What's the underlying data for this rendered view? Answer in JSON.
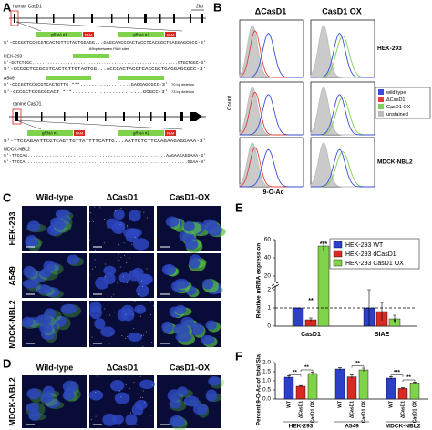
{
  "panel_labels": [
    "A",
    "B",
    "C",
    "D",
    "E",
    "F"
  ],
  "panel_a": {
    "human_gene": "human CasD1",
    "scale": "2kb",
    "grna1": "gRNA #1",
    "grna2": "gRNA #2",
    "pam": "PAM",
    "human_seq": "5'-CCCGCTCCGCGTCACTGTTGTAGTGGAGG...GAGCAACCCACTACCTCACCGCTGAGGAGCGCC-3'",
    "gap_note": "69bp between PAM sites",
    "hek": "HEK-293",
    "hek_seqs": [
      "5'-GCTCTGGC.........................................................GTGCTGGC-3'",
      "5'-CCCGCTCCGCGTCACTGTTGTAGTGG...ACCCACTACCTCACCGCTGAGGAGCGCC-3'"
    ],
    "a549": "A549",
    "a549_seqs": [
      "5'-CCCGCTCCGCGTCACTGTTG ***..................GAGGAGCGCC-3'",
      "5'-CCCGCTCCGCGCACT ***.......................GCGCC-3'"
    ],
    "a549_notes": [
      "70 bp deletion",
      "73 bp deletion"
    ],
    "canine_gene": "canine CasD1",
    "canine_seq": "5'-TTCCAGAATTCGTCAGTTGTTATTTTCATTG...AATTCTCTTCAAGAAGAGGAAA-3'",
    "mdck": "MDCK-NBL2",
    "mdck_seqs": [
      "5'-TTCCAG....................................................AAGAAGAGGAAA-3'",
      "5'-TTCCA.............................................................GGAA-3'"
    ]
  },
  "panel_b": {
    "columns": [
      "ΔCasD1",
      "CasD1 OX"
    ],
    "rows": [
      "HEK-293",
      "A549",
      "MDCK-NBL2"
    ],
    "y_label": "Count",
    "x_label": "9-O-Ac",
    "legend": [
      {
        "name": "wild type",
        "color": "#3a4fd6"
      },
      {
        "name": "ΔCasD1",
        "color": "#e0403a"
      },
      {
        "name": "CasD1 OX",
        "color": "#7fd05a"
      },
      {
        "name": "unstained",
        "color": "#bdbdbd"
      }
    ]
  },
  "panel_c": {
    "columns": [
      "Wild-type",
      "ΔCasD1",
      "CasD1-OX"
    ],
    "rows": [
      "HEK-293",
      "A549",
      "MDCK-NBL2"
    ]
  },
  "panel_d": {
    "columns": [
      "Wild-type",
      "ΔCasD1",
      "CasD1-OX"
    ],
    "rows": [
      "MDCK-NBL2"
    ]
  },
  "chart_data": [
    {
      "type": "bar",
      "y_label": "Relative mRNA expression",
      "categories": [
        "CasD1",
        "SIAE"
      ],
      "series": [
        {
          "name": "HEK-293 WT",
          "color": "#2b3fc8",
          "values": [
            1,
            1
          ],
          "errors": [
            0,
            1.0
          ]
        },
        {
          "name": "HEK-293 dCasD1",
          "color": "#d82a22",
          "values": [
            0.35,
            0.8
          ],
          "errors": [
            0.1,
            0.5
          ]
        },
        {
          "name": "HEK-293 CasD1 OX",
          "color": "#7fd34a",
          "values": [
            53,
            0.4
          ],
          "errors": [
            5,
            0.2
          ]
        }
      ],
      "ylim": [
        0,
        60
      ],
      "ybreak": [
        2,
        20
      ],
      "yticks": [
        0,
        1,
        2,
        20,
        40,
        60
      ],
      "reference_line": 1,
      "annotations": [
        "**",
        "***",
        "*"
      ]
    },
    {
      "type": "bar",
      "y_label": "Percent 9-O-Ac of total Sia",
      "categories": [
        "HEK-293",
        "A549",
        "MDCK-NBL2"
      ],
      "series": [
        {
          "name": "WT",
          "color": "#2b3fc8",
          "values": [
            1.2,
            1.65,
            1.15
          ],
          "errors": [
            0.08,
            0.08,
            0.08
          ]
        },
        {
          "name": "ΔCasD1",
          "color": "#d82a22",
          "values": [
            0.7,
            1.22,
            0.58
          ],
          "errors": [
            0.04,
            0.1,
            0.05
          ]
        },
        {
          "name": "CasD1 OX",
          "color": "#7fd34a",
          "values": [
            1.4,
            1.6,
            0.88
          ],
          "errors": [
            0.08,
            0.1,
            0.05
          ]
        }
      ],
      "ylim": [
        0,
        2
      ],
      "yticks": [
        {
          "value": 0,
          "label": "0.0"
        },
        {
          "value": 0.5,
          "label": "0.5"
        },
        {
          "value": 1,
          "label": "1.0"
        },
        {
          "value": 1.5,
          "label": "1.5"
        },
        {
          "value": 2,
          "label": "2.0"
        }
      ],
      "annotations": [
        "**",
        "**",
        "**",
        "***",
        "**"
      ]
    }
  ]
}
